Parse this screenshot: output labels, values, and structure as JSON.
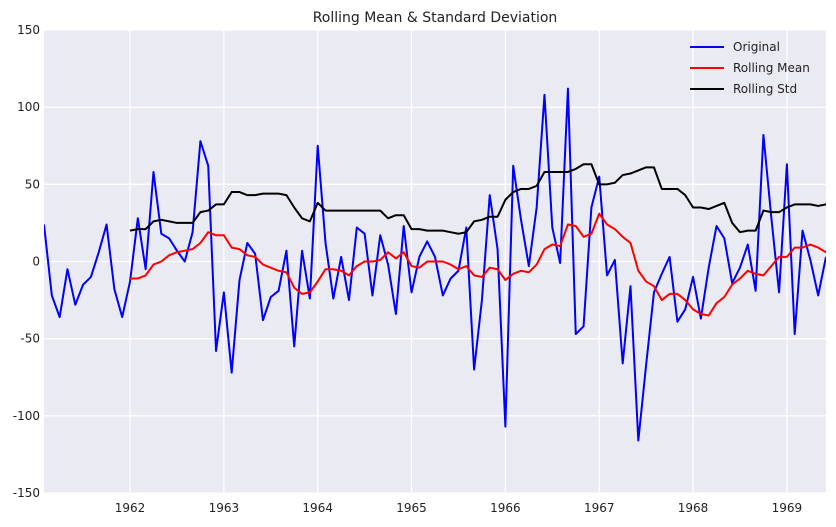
{
  "chart_data": {
    "type": "line",
    "title": "Rolling Mean & Standard Deviation",
    "xlabel": "",
    "ylabel": "",
    "xlim": [
      1961.0833,
      1969.4167
    ],
    "ylim": [
      -150,
      150
    ],
    "x_ticks": [
      1962,
      1963,
      1964,
      1965,
      1966,
      1967,
      1968,
      1969
    ],
    "y_ticks": [
      -150,
      -100,
      -50,
      0,
      50,
      100,
      150
    ],
    "grid": true,
    "legend_position": "top-right",
    "colors": {
      "background": "#eaeaf2",
      "grid": "#ffffff",
      "original": "#0000ff",
      "rolling_mean": "#ff0000",
      "rolling_std": "#000000"
    },
    "series": [
      {
        "name": "Original",
        "color": "#0000ff",
        "start": 1961.0833,
        "step": 0.0833333,
        "values": [
          24,
          -22,
          -36,
          -5,
          -28,
          -15,
          -10,
          6,
          24,
          -18,
          -36,
          -13,
          28,
          -5,
          58,
          18,
          15,
          7,
          0,
          19,
          78,
          62,
          -58,
          -20,
          -72,
          -12,
          12,
          5,
          -38,
          -23,
          -19,
          7,
          -55,
          7,
          -24,
          75,
          12,
          -24,
          3,
          -25,
          22,
          18,
          -22,
          17,
          -2,
          -34,
          23,
          -20,
          3,
          13,
          3,
          -22,
          -11,
          -6,
          22,
          -70,
          -25,
          43,
          8,
          -107,
          62,
          27,
          -3,
          35,
          108,
          22,
          -1,
          112,
          -47,
          -42,
          35,
          55,
          -9,
          1,
          -66,
          -16,
          -116,
          -67,
          -20,
          -8,
          3,
          -39,
          -31,
          -10,
          -37,
          -4,
          23,
          15,
          -14,
          -4,
          11,
          -19,
          82,
          29,
          -20,
          63,
          -47,
          20,
          1,
          -22,
          3
        ]
      },
      {
        "name": "Rolling Mean",
        "color": "#ff0000",
        "start": 1962.0,
        "step": 0.0833333,
        "values": [
          -11,
          -11,
          -9,
          -2,
          0,
          4,
          6,
          7,
          8,
          12,
          19,
          17,
          17,
          9,
          8,
          4,
          3,
          -2,
          -4,
          -6,
          -7,
          -17,
          -21,
          -20,
          -13,
          -5,
          -5,
          -6,
          -9,
          -3,
          0,
          0,
          1,
          6,
          2,
          6,
          -3,
          -4,
          0,
          0,
          0,
          -2,
          -5,
          -3,
          -9,
          -10,
          -4,
          -5,
          -12,
          -8,
          -6,
          -7,
          -2,
          8,
          11,
          10,
          24,
          23,
          16,
          18,
          31,
          24,
          21,
          16,
          12,
          -6,
          -13,
          -16,
          -25,
          -21,
          -21,
          -25,
          -31,
          -34,
          -35,
          -27,
          -23,
          -15,
          -11,
          -6,
          -8,
          -9,
          -3,
          3,
          3,
          9,
          9,
          11,
          9,
          6,
          8
        ]
      },
      {
        "name": "Rolling Std",
        "color": "#000000",
        "start": 1962.0,
        "step": 0.0833333,
        "values": [
          20,
          21,
          21,
          26,
          27,
          26,
          25,
          25,
          25,
          32,
          33,
          37,
          37,
          45,
          45,
          43,
          43,
          44,
          44,
          44,
          43,
          35,
          28,
          26,
          38,
          33,
          33,
          33,
          33,
          33,
          33,
          33,
          33,
          28,
          30,
          30,
          21,
          21,
          20,
          20,
          20,
          19,
          18,
          19,
          26,
          27,
          29,
          29,
          40,
          45,
          47,
          47,
          49,
          58,
          58,
          58,
          58,
          60,
          63,
          63,
          50,
          50,
          51,
          56,
          57,
          59,
          61,
          61,
          47,
          47,
          47,
          43,
          35,
          35,
          34,
          36,
          38,
          25,
          19,
          20,
          20,
          33,
          32,
          32,
          35,
          37,
          37,
          37,
          36,
          37,
          37
        ]
      }
    ]
  }
}
